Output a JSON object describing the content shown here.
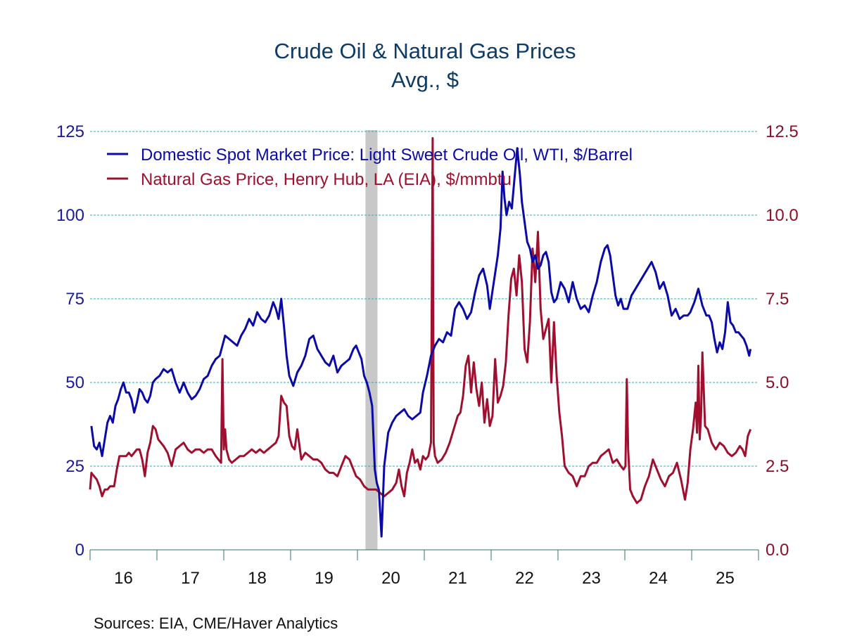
{
  "chart_data": {
    "type": "line",
    "title": "Crude Oil & Natural Gas Prices",
    "subtitle": "Avg., $",
    "source": "Sources:   EIA, CME/Haver Analytics",
    "x_range": [
      2016.0,
      2026.0
    ],
    "x_ticks": [
      "16",
      "17",
      "18",
      "19",
      "20",
      "21",
      "22",
      "23",
      "24",
      "25"
    ],
    "y_left": {
      "range": [
        0,
        125
      ],
      "ticks": [
        "0",
        "25",
        "50",
        "75",
        "100",
        "125"
      ],
      "tick_values": [
        0,
        25,
        50,
        75,
        100,
        125
      ],
      "color": "#1a1aa0"
    },
    "y_right": {
      "range": [
        0,
        12.5
      ],
      "ticks": [
        "0.0",
        "2.5",
        "5.0",
        "7.5",
        "10.0",
        "12.5"
      ],
      "tick_values": [
        0,
        2.5,
        5,
        7.5,
        10,
        12.5
      ],
      "color": "#8c1028"
    },
    "grid": true,
    "legend_position": "top-left",
    "recession": {
      "start": 2020.12,
      "end": 2020.3,
      "color": "#c8c8c8"
    },
    "series": [
      {
        "name": "Domestic Spot Market Price: Light Sweet Crude Oil, WTI, $/Barrel",
        "axis": "left",
        "color": "#0a0aa8",
        "x": [
          2016.02,
          2016.06,
          2016.1,
          2016.14,
          2016.18,
          2016.22,
          2016.26,
          2016.3,
          2016.34,
          2016.38,
          2016.42,
          2016.46,
          2016.5,
          2016.54,
          2016.58,
          2016.62,
          2016.66,
          2016.7,
          2016.74,
          2016.78,
          2016.82,
          2016.86,
          2016.9,
          2016.94,
          2016.98,
          2017.04,
          2017.1,
          2017.16,
          2017.22,
          2017.28,
          2017.34,
          2017.4,
          2017.46,
          2017.52,
          2017.58,
          2017.64,
          2017.7,
          2017.76,
          2017.82,
          2017.88,
          2017.94,
          2018.02,
          2018.08,
          2018.14,
          2018.2,
          2018.26,
          2018.32,
          2018.38,
          2018.44,
          2018.5,
          2018.56,
          2018.62,
          2018.68,
          2018.74,
          2018.78,
          2018.82,
          2018.86,
          2018.9,
          2018.94,
          2018.98,
          2019.04,
          2019.1,
          2019.16,
          2019.22,
          2019.28,
          2019.34,
          2019.4,
          2019.46,
          2019.52,
          2019.58,
          2019.64,
          2019.7,
          2019.76,
          2019.82,
          2019.88,
          2019.94,
          2019.98,
          2020.02,
          2020.06,
          2020.1,
          2020.14,
          2020.18,
          2020.22,
          2020.26,
          2020.29,
          2020.32,
          2020.36,
          2020.4,
          2020.46,
          2020.52,
          2020.58,
          2020.64,
          2020.7,
          2020.76,
          2020.82,
          2020.88,
          2020.94,
          2020.98,
          2021.04,
          2021.1,
          2021.16,
          2021.22,
          2021.28,
          2021.34,
          2021.4,
          2021.46,
          2021.52,
          2021.58,
          2021.64,
          2021.7,
          2021.76,
          2021.82,
          2021.88,
          2021.94,
          2021.98,
          2022.04,
          2022.1,
          2022.14,
          2022.17,
          2022.2,
          2022.23,
          2022.27,
          2022.31,
          2022.35,
          2022.39,
          2022.43,
          2022.46,
          2022.5,
          2022.54,
          2022.58,
          2022.62,
          2022.66,
          2022.7,
          2022.74,
          2022.78,
          2022.82,
          2022.86,
          2022.9,
          2022.94,
          2022.98,
          2023.04,
          2023.1,
          2023.16,
          2023.22,
          2023.28,
          2023.34,
          2023.4,
          2023.46,
          2023.52,
          2023.58,
          2023.64,
          2023.7,
          2023.74,
          2023.78,
          2023.82,
          2023.86,
          2023.9,
          2023.94,
          2023.98,
          2024.04,
          2024.1,
          2024.16,
          2024.22,
          2024.28,
          2024.34,
          2024.4,
          2024.46,
          2024.52,
          2024.58,
          2024.64,
          2024.7,
          2024.76,
          2024.82,
          2024.88,
          2024.94,
          2024.98,
          2025.04,
          2025.1,
          2025.16,
          2025.22,
          2025.26,
          2025.3,
          2025.34,
          2025.38,
          2025.42,
          2025.46,
          2025.5,
          2025.54,
          2025.58,
          2025.62,
          2025.66,
          2025.7,
          2025.74,
          2025.78,
          2025.82,
          2025.86,
          2025.88
        ],
        "values": [
          37,
          31,
          30,
          32,
          28,
          33,
          38,
          40,
          38,
          43,
          45,
          48,
          50,
          47,
          47,
          45,
          41,
          44,
          48,
          47,
          45,
          44,
          46,
          50,
          51,
          52,
          54,
          53,
          54,
          50,
          47,
          50,
          47,
          45,
          46,
          48,
          51,
          52,
          55,
          57,
          58,
          64,
          63,
          62,
          61,
          64,
          66,
          69,
          67,
          71,
          69,
          68,
          70,
          74,
          72,
          69,
          75,
          67,
          58,
          52,
          49,
          53,
          55,
          58,
          63,
          64,
          60,
          58,
          56,
          55,
          58,
          53,
          55,
          56,
          57,
          60,
          61,
          59,
          57,
          52,
          50,
          47,
          43,
          24,
          20,
          18,
          4,
          25,
          35,
          38,
          40,
          41,
          42,
          40,
          39,
          40,
          41,
          47,
          52,
          58,
          61,
          63,
          62,
          65,
          64,
          72,
          74,
          72,
          69,
          71,
          77,
          82,
          84,
          79,
          72,
          80,
          88,
          96,
          113,
          105,
          100,
          104,
          102,
          111,
          120,
          112,
          104,
          98,
          92,
          90,
          86,
          88,
          84,
          85,
          88,
          89,
          86,
          77,
          74,
          75,
          80,
          78,
          74,
          80,
          75,
          72,
          73,
          71,
          76,
          80,
          86,
          90,
          91,
          88,
          82,
          76,
          73,
          75,
          72,
          72,
          76,
          78,
          80,
          82,
          84,
          86,
          83,
          78,
          80,
          76,
          70,
          72,
          69,
          70,
          70,
          71,
          74,
          78,
          73,
          70,
          70,
          68,
          63,
          59,
          62,
          60,
          65,
          74,
          68,
          67,
          65,
          65,
          64,
          63,
          61,
          58,
          60
        ]
      },
      {
        "name": "Natural Gas Price, Henry Hub, LA (EIA), $/mmbtu",
        "axis": "right",
        "color": "#a0102e",
        "x": [
          2016.0,
          2016.02,
          2016.06,
          2016.1,
          2016.14,
          2016.18,
          2016.22,
          2016.26,
          2016.3,
          2016.36,
          2016.4,
          2016.44,
          2016.5,
          2016.54,
          2016.58,
          2016.62,
          2016.66,
          2016.7,
          2016.74,
          2016.78,
          2016.82,
          2016.86,
          2016.9,
          2016.94,
          2016.98,
          2017.02,
          2017.06,
          2017.1,
          2017.16,
          2017.22,
          2017.28,
          2017.34,
          2017.4,
          2017.46,
          2017.52,
          2017.58,
          2017.64,
          2017.7,
          2017.76,
          2017.82,
          2017.88,
          2017.92,
          2017.96,
          2017.98,
          2018.0,
          2018.02,
          2018.04,
          2018.08,
          2018.12,
          2018.18,
          2018.24,
          2018.3,
          2018.36,
          2018.42,
          2018.48,
          2018.54,
          2018.6,
          2018.66,
          2018.72,
          2018.78,
          2018.82,
          2018.86,
          2018.9,
          2018.94,
          2018.98,
          2019.02,
          2019.06,
          2019.1,
          2019.16,
          2019.22,
          2019.28,
          2019.34,
          2019.4,
          2019.46,
          2019.52,
          2019.58,
          2019.64,
          2019.7,
          2019.76,
          2019.82,
          2019.88,
          2019.94,
          2019.98,
          2020.04,
          2020.1,
          2020.16,
          2020.22,
          2020.28,
          2020.34,
          2020.4,
          2020.46,
          2020.52,
          2020.58,
          2020.62,
          2020.66,
          2020.7,
          2020.74,
          2020.78,
          2020.82,
          2020.86,
          2020.9,
          2020.94,
          2020.98,
          2021.02,
          2021.06,
          2021.1,
          2021.125,
          2021.14,
          2021.16,
          2021.2,
          2021.26,
          2021.32,
          2021.38,
          2021.44,
          2021.5,
          2021.54,
          2021.58,
          2021.62,
          2021.66,
          2021.7,
          2021.74,
          2021.78,
          2021.82,
          2021.86,
          2021.9,
          2021.94,
          2021.98,
          2022.02,
          2022.06,
          2022.1,
          2022.14,
          2022.18,
          2022.22,
          2022.26,
          2022.3,
          2022.34,
          2022.38,
          2022.42,
          2022.46,
          2022.5,
          2022.54,
          2022.58,
          2022.62,
          2022.66,
          2022.7,
          2022.74,
          2022.78,
          2022.82,
          2022.86,
          2022.9,
          2022.94,
          2022.98,
          2023.02,
          2023.06,
          2023.1,
          2023.16,
          2023.22,
          2023.28,
          2023.34,
          2023.4,
          2023.46,
          2023.52,
          2023.58,
          2023.64,
          2023.7,
          2023.76,
          2023.82,
          2023.88,
          2023.94,
          2023.98,
          2024.01,
          2024.03,
          2024.05,
          2024.08,
          2024.12,
          2024.18,
          2024.24,
          2024.3,
          2024.36,
          2024.42,
          2024.48,
          2024.54,
          2024.6,
          2024.66,
          2024.72,
          2024.78,
          2024.84,
          2024.9,
          2024.94,
          2024.98,
          2025.02,
          2025.06,
          2025.08,
          2025.1,
          2025.12,
          2025.14,
          2025.16,
          2025.2,
          2025.24,
          2025.3,
          2025.36,
          2025.42,
          2025.48,
          2025.54,
          2025.6,
          2025.66,
          2025.72,
          2025.76,
          2025.8,
          2025.84,
          2025.88
        ],
        "values": [
          1.8,
          2.3,
          2.2,
          2.1,
          1.9,
          1.6,
          1.8,
          1.8,
          1.9,
          1.9,
          2.4,
          2.8,
          2.8,
          2.8,
          2.9,
          2.8,
          2.9,
          3.0,
          3.0,
          2.7,
          2.2,
          2.9,
          3.2,
          3.7,
          3.6,
          3.3,
          3.2,
          3.1,
          2.9,
          2.5,
          3.0,
          3.1,
          3.2,
          3.0,
          2.9,
          3.0,
          3.0,
          2.9,
          3.0,
          3.0,
          2.8,
          2.7,
          2.6,
          5.7,
          3.0,
          3.6,
          3.0,
          2.7,
          2.6,
          2.7,
          2.8,
          2.8,
          2.9,
          3.0,
          2.9,
          3.0,
          2.9,
          3.0,
          3.1,
          3.2,
          3.4,
          4.6,
          4.4,
          4.3,
          3.4,
          3.1,
          3.0,
          3.6,
          2.7,
          2.9,
          2.8,
          2.7,
          2.7,
          2.6,
          2.4,
          2.3,
          2.3,
          2.2,
          2.5,
          2.8,
          2.7,
          2.4,
          2.2,
          2.1,
          1.9,
          1.8,
          1.8,
          1.8,
          1.7,
          1.6,
          1.7,
          1.8,
          2.0,
          2.4,
          1.9,
          1.6,
          2.3,
          2.6,
          3.0,
          2.6,
          2.7,
          2.4,
          2.8,
          2.7,
          2.8,
          3.2,
          12.3,
          3.2,
          2.8,
          2.6,
          2.7,
          2.9,
          3.2,
          3.6,
          4.0,
          4.1,
          4.6,
          5.5,
          5.8,
          4.7,
          5.6,
          4.8,
          4.3,
          5.0,
          3.8,
          4.5,
          3.7,
          4.0,
          5.7,
          4.4,
          4.6,
          4.9,
          5.6,
          7.0,
          8.1,
          8.4,
          7.6,
          8.8,
          8.0,
          6.0,
          5.6,
          6.8,
          9.0,
          8.0,
          9.5,
          7.2,
          6.3,
          6.6,
          6.9,
          5.0,
          6.8,
          5.2,
          4.1,
          3.4,
          2.5,
          2.3,
          2.2,
          1.9,
          2.2,
          2.2,
          2.5,
          2.6,
          2.6,
          2.8,
          2.9,
          3.0,
          2.6,
          2.7,
          2.5,
          2.4,
          2.5,
          5.1,
          3.0,
          1.8,
          1.6,
          1.4,
          1.5,
          1.9,
          2.2,
          2.7,
          2.4,
          2.1,
          1.9,
          2.2,
          2.3,
          2.6,
          2.1,
          1.5,
          2.0,
          3.0,
          3.6,
          4.4,
          3.5,
          5.5,
          3.3,
          4.0,
          5.9,
          3.7,
          3.6,
          3.2,
          3.0,
          3.2,
          3.1,
          2.9,
          2.8,
          2.9,
          3.1,
          3.0,
          2.8,
          3.4,
          3.6
        ]
      }
    ]
  }
}
